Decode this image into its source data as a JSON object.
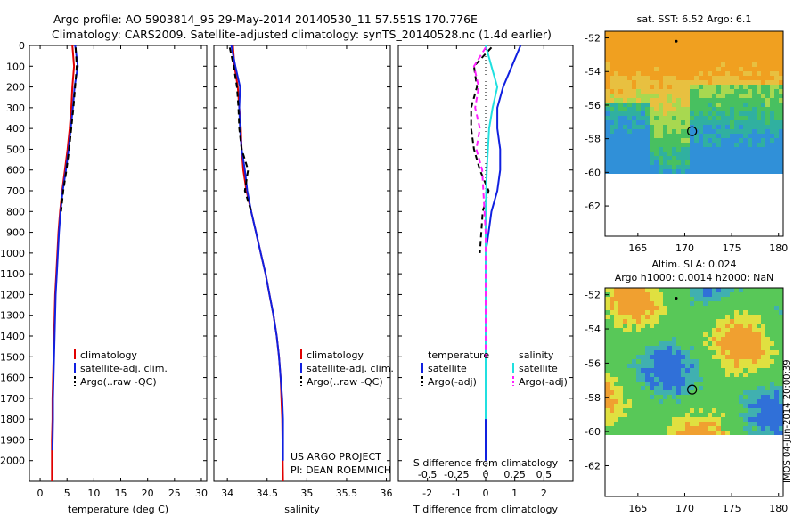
{
  "header": {
    "line1": "Argo profile: AO 5903814_95 29-May-2014 20140530_11 57.551S 170.776E",
    "line2": "Climatology: CARS2009. Satellite-adjusted climatology: synTS_20140528.nc (1.4d earlier)"
  },
  "depth_ticks": [
    "0",
    "100",
    "200",
    "300",
    "400",
    "500",
    "600",
    "700",
    "800",
    "900",
    "1000",
    "1100",
    "1200",
    "1300",
    "1400",
    "1500",
    "1600",
    "1700",
    "1800",
    "1900",
    "2000"
  ],
  "colors": {
    "climatology": "#e00000",
    "satellite": "#1020e0",
    "argo": "#000000",
    "cyan": "#20e0e0",
    "magenta": "#ff20ff"
  },
  "chart_data": [
    {
      "type": "line",
      "id": "temp",
      "xlabel": "temperature (deg C)",
      "xticks": [
        0,
        5,
        10,
        15,
        20,
        25,
        30
      ],
      "xlim": [
        -2,
        31
      ],
      "ylim": [
        0,
        2100
      ],
      "legend": [
        {
          "label": "climatology",
          "color": "#e00000",
          "dashed": false
        },
        {
          "label": "satellite-adj. clim.",
          "color": "#1020e0",
          "dashed": false
        },
        {
          "label": "Argo(..raw -QC)",
          "color": "#000000",
          "dashed": true
        }
      ],
      "series": [
        {
          "name": "climatology",
          "color": "#e00000",
          "dashed": false,
          "x": [
            6.0,
            6.3,
            6.0,
            5.8,
            5.5,
            5.1,
            4.6,
            4.1,
            3.7,
            3.4,
            3.2,
            3.0,
            2.8,
            2.7,
            2.6,
            2.5,
            2.4,
            2.3,
            2.3,
            2.2,
            2.2
          ],
          "y": [
            0,
            100,
            200,
            300,
            400,
            500,
            600,
            700,
            800,
            900,
            1000,
            1100,
            1200,
            1300,
            1400,
            1500,
            1600,
            1700,
            1800,
            1900,
            2100
          ]
        },
        {
          "name": "satellite-adj. clim.",
          "color": "#1020e0",
          "dashed": false,
          "x": [
            6.5,
            7.0,
            6.4,
            6.1,
            5.7,
            5.3,
            4.8,
            4.2,
            3.8,
            3.5,
            3.3,
            3.1,
            2.9,
            2.8,
            2.7,
            2.6,
            2.5,
            2.4,
            2.4,
            2.3
          ],
          "y": [
            0,
            100,
            200,
            300,
            400,
            500,
            600,
            700,
            800,
            900,
            1000,
            1100,
            1200,
            1300,
            1400,
            1500,
            1600,
            1700,
            1800,
            1950
          ]
        },
        {
          "name": "Argo(..raw -QC)",
          "color": "#000000",
          "dashed": true,
          "x": [
            6.6,
            6.8,
            6.5,
            6.2,
            5.8,
            5.4,
            4.9,
            4.3,
            3.9
          ],
          "y": [
            10,
            100,
            200,
            300,
            400,
            500,
            600,
            700,
            800
          ]
        }
      ]
    },
    {
      "type": "line",
      "id": "sal",
      "xlabel": "salinity",
      "xticks": [
        34,
        34.5,
        35,
        35.5,
        36
      ],
      "xlim": [
        33.83,
        36.05
      ],
      "ylim": [
        0,
        2100
      ],
      "legend": [
        {
          "label": "climatology",
          "color": "#e00000",
          "dashed": false
        },
        {
          "label": "satellite-adj. clim.",
          "color": "#1020e0",
          "dashed": false
        },
        {
          "label": "Argo(..raw -QC)",
          "color": "#000000",
          "dashed": true
        }
      ],
      "series": [
        {
          "name": "climatology",
          "color": "#e00000",
          "dashed": false,
          "x": [
            34.07,
            34.09,
            34.13,
            34.15,
            34.17,
            34.18,
            34.2,
            34.24,
            34.3,
            34.36,
            34.42,
            34.48,
            34.53,
            34.58,
            34.62,
            34.65,
            34.67,
            34.68,
            34.69,
            34.7
          ],
          "y": [
            0,
            100,
            200,
            300,
            400,
            500,
            600,
            700,
            800,
            900,
            1000,
            1100,
            1200,
            1300,
            1400,
            1500,
            1600,
            1700,
            1800,
            2100
          ]
        },
        {
          "name": "satellite-adj. clim.",
          "color": "#1020e0",
          "dashed": false,
          "x": [
            34.05,
            34.1,
            34.16,
            34.15,
            34.16,
            34.18,
            34.22,
            34.25,
            34.3,
            34.36,
            34.42,
            34.48,
            34.53,
            34.58,
            34.62,
            34.65,
            34.67,
            34.69,
            34.7,
            34.7
          ],
          "y": [
            0,
            100,
            200,
            300,
            400,
            500,
            600,
            700,
            800,
            900,
            1000,
            1100,
            1200,
            1300,
            1400,
            1500,
            1600,
            1700,
            1800,
            2000
          ]
        },
        {
          "name": "Argo(..raw -QC)",
          "color": "#000000",
          "dashed": true,
          "x": [
            34.03,
            34.08,
            34.12,
            34.14,
            34.15,
            34.18,
            34.26,
            34.22,
            34.3
          ],
          "y": [
            10,
            100,
            200,
            300,
            400,
            500,
            600,
            700,
            800
          ]
        }
      ]
    },
    {
      "type": "line",
      "id": "diff",
      "xlabel": "T difference from climatology",
      "toplabel": "S difference from climatology",
      "xticks": [
        -2,
        -1,
        0,
        1,
        2
      ],
      "sticks": [
        {
          "v": -0.5,
          "l": "-0.5"
        },
        {
          "v": -0.25,
          "l": "-0.25"
        },
        {
          "v": 0,
          "l": "0"
        },
        {
          "v": 0.25,
          "l": "0.25"
        },
        {
          "v": 0.5,
          "l": "0.5"
        }
      ],
      "xlim": [
        -3,
        3
      ],
      "slim": [
        -0.75,
        0.75
      ],
      "ylim": [
        0,
        2100
      ],
      "legend_temp_title": "temperature",
      "legend_sal_title": "salinity",
      "legend_temp": [
        {
          "label": "satellite",
          "color": "#1020e0",
          "dashed": false
        },
        {
          "label": "Argo(-adj)",
          "color": "#000000",
          "dashed": true
        }
      ],
      "legend_sal": [
        {
          "label": "satellite",
          "color": "#20e0e0",
          "dashed": false
        },
        {
          "label": "Argo(-adj)",
          "color": "#ff20ff",
          "dashed": true
        }
      ],
      "series": [
        {
          "name": "temperature satellite",
          "color": "#1020e0",
          "dashed": false,
          "x": [
            1.2,
            0.9,
            0.6,
            0.4,
            0.4,
            0.5,
            0.5,
            0.4,
            0.2,
            0.1,
            0.0,
            0.0,
            0.0,
            0.0,
            0.0,
            0.0,
            0.0,
            0.0,
            0.0
          ],
          "y": [
            0,
            100,
            200,
            300,
            400,
            500,
            600,
            700,
            800,
            900,
            1000,
            1200,
            1400,
            1500,
            1600,
            1700,
            1800,
            1900,
            2000
          ]
        },
        {
          "name": "temperature Argo(-adj)",
          "color": "#000000",
          "dashed": true,
          "x": [
            0.2,
            -0.4,
            -0.3,
            -0.5,
            -0.5,
            -0.4,
            -0.2,
            0.1,
            -0.1,
            -0.2
          ],
          "y": [
            10,
            100,
            200,
            300,
            400,
            500,
            600,
            700,
            800,
            1000
          ]
        },
        {
          "name": "salinity satellite",
          "color": "#20e0e0",
          "dashed": false,
          "x": [
            0.0,
            0.05,
            0.1,
            0.06,
            0.03,
            0.02,
            0.01,
            0.0,
            0.0,
            0.0,
            0.0,
            0.0,
            0.0
          ],
          "y": [
            0,
            100,
            200,
            300,
            400,
            500,
            600,
            800,
            1000,
            1200,
            1400,
            1600,
            1800
          ]
        },
        {
          "name": "salinity Argo(-adj)",
          "color": "#ff20ff",
          "dashed": true,
          "x": [
            0.0,
            -0.1,
            -0.06,
            -0.09,
            -0.05,
            -0.08,
            -0.03,
            0.0,
            0.0,
            0.0
          ],
          "y": [
            10,
            100,
            200,
            300,
            400,
            500,
            600,
            900,
            1200,
            1500
          ]
        }
      ],
      "annotations": [
        "US ARGO PROJECT",
        "PI: DEAN ROEMMICH"
      ]
    },
    {
      "type": "heatmap",
      "id": "sst",
      "title": "sat. SST: 6.52 Argo: 6.1",
      "xticks": [
        165,
        170,
        175,
        180
      ],
      "yticks": [
        -52,
        -54,
        -56,
        -58,
        -60,
        -62
      ],
      "xlim": [
        161.5,
        180.5
      ],
      "ylim": [
        -63.8,
        -51.6
      ],
      "data_lat_min": -60,
      "marker": {
        "lon": 170.776,
        "lat": -57.551
      }
    },
    {
      "type": "heatmap",
      "id": "sla",
      "title": "Altim. SLA: 0.024",
      "subtitle": "Argo h1000: 0.0014 h2000: NaN",
      "xticks": [
        165,
        170,
        175,
        180
      ],
      "yticks": [
        -52,
        -54,
        -56,
        -58,
        -60,
        -62
      ],
      "xlim": [
        161.5,
        180.5
      ],
      "ylim": [
        -63.8,
        -51.6
      ],
      "data_lat_min": -60,
      "marker": {
        "lon": 170.776,
        "lat": -57.551
      }
    }
  ],
  "stamp": "IMOS 04-Jun-2014 20:00:39"
}
